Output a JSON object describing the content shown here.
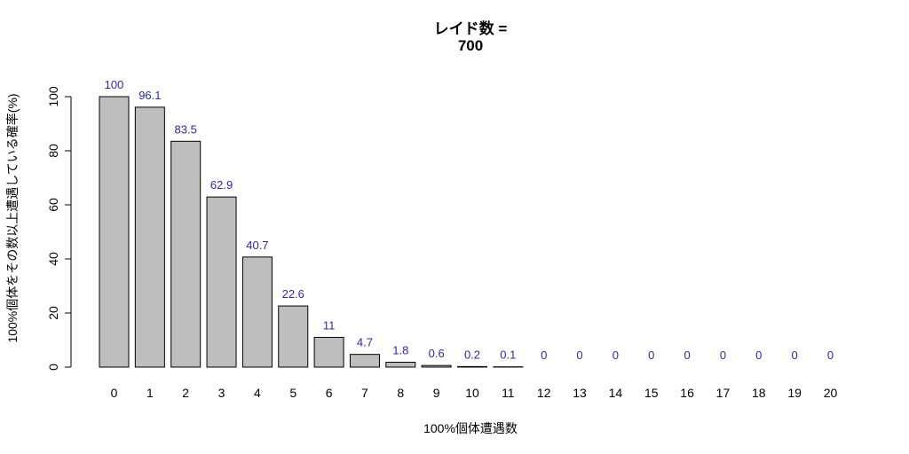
{
  "chart_data": {
    "type": "bar",
    "title_line1": "レイド数 =",
    "title_line2": "700",
    "xlabel": "100%個体遭遇数",
    "ylabel": "100%個体をその数以上遭遇している確率(%)",
    "categories": [
      "0",
      "1",
      "2",
      "3",
      "4",
      "5",
      "6",
      "7",
      "8",
      "9",
      "10",
      "11",
      "12",
      "13",
      "14",
      "15",
      "16",
      "17",
      "18",
      "19",
      "20"
    ],
    "values": [
      100,
      96.1,
      83.5,
      62.9,
      40.7,
      22.6,
      11,
      4.7,
      1.8,
      0.6,
      0.2,
      0.1,
      0,
      0,
      0,
      0,
      0,
      0,
      0,
      0,
      0
    ],
    "value_labels": [
      "100",
      "96.1",
      "83.5",
      "62.9",
      "40.7",
      "22.6",
      "11",
      "4.7",
      "1.8",
      "0.6",
      "0.2",
      "0.1",
      "0",
      "0",
      "0",
      "0",
      "0",
      "0",
      "0",
      "0",
      "0"
    ],
    "ylim": [
      0,
      100
    ],
    "yticks": [
      "0",
      "20",
      "40",
      "60",
      "80",
      "100"
    ],
    "grid": false,
    "bar_color": "#bebebe",
    "bar_border_color": "#000000",
    "label_color": "#2a2aa8"
  }
}
